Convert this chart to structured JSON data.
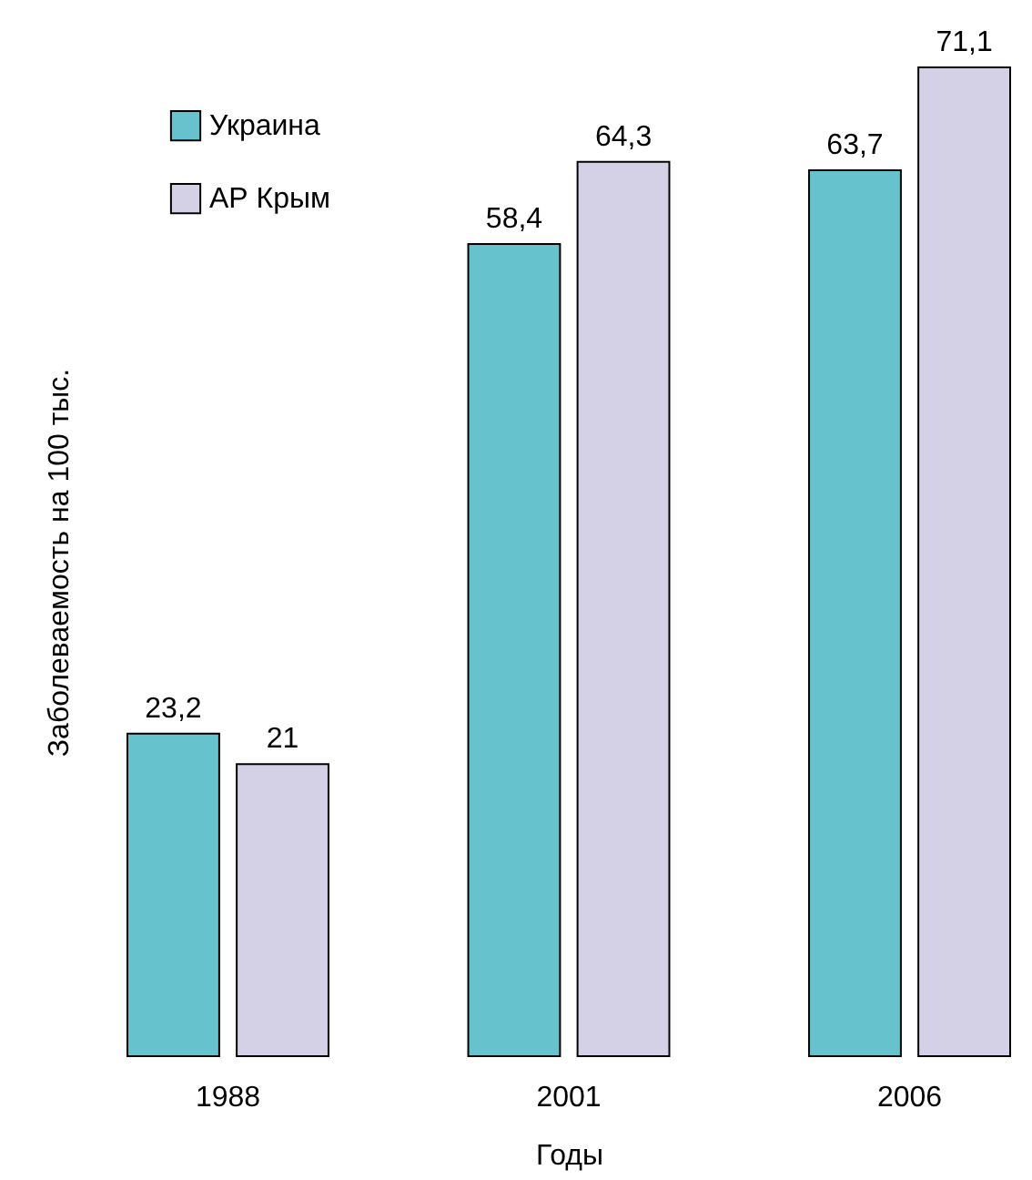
{
  "chart_data": {
    "type": "bar",
    "xlabel": "Годы",
    "ylabel": "Заболеваемость на 100 тыс.",
    "categories": [
      "1988",
      "2001",
      "2006"
    ],
    "series": [
      {
        "name": "Украина",
        "color": "#66c2cc",
        "values": [
          23.2,
          58.4,
          63.7
        ],
        "value_labels": [
          "23,2",
          "58,4",
          "63,7"
        ]
      },
      {
        "name": "АР Крым",
        "color": "#d4d0e6",
        "values": [
          21,
          64.3,
          71.1
        ],
        "value_labels": [
          "21",
          "64,3",
          "71,1"
        ]
      }
    ],
    "legend": "top left",
    "grid": false,
    "tick_labels": "x"
  }
}
